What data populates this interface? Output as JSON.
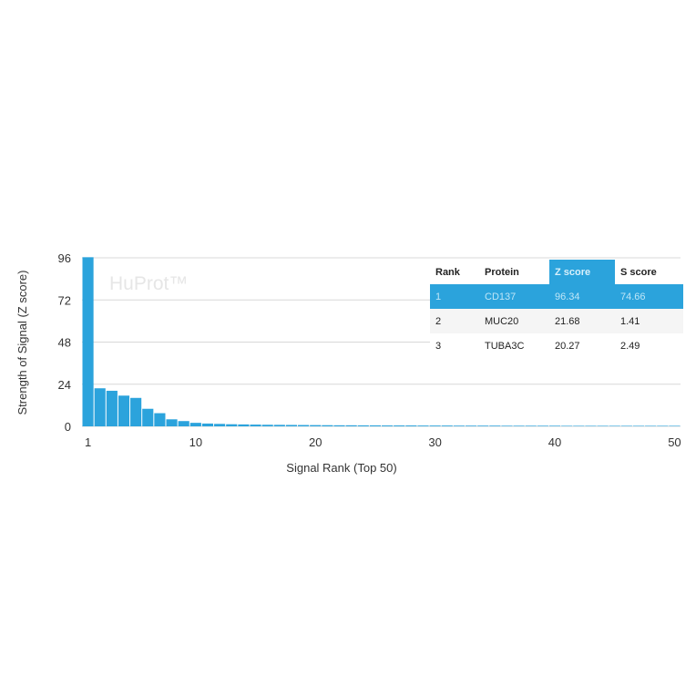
{
  "chart_data": {
    "type": "bar",
    "xlabel": "Signal Rank (Top 50)",
    "ylabel": "Strength of Signal (Z score)",
    "ylim": [
      0,
      96
    ],
    "yticks": [
      0,
      24,
      48,
      72,
      96
    ],
    "xticks": [
      1,
      10,
      20,
      30,
      40,
      50
    ],
    "grid": true,
    "watermark": "HuProt™",
    "bar_color": "#2ba3dc",
    "x": [
      1,
      2,
      3,
      4,
      5,
      6,
      7,
      8,
      9,
      10,
      11,
      12,
      13,
      14,
      15,
      16,
      17,
      18,
      19,
      20,
      21,
      22,
      23,
      24,
      25,
      26,
      27,
      28,
      29,
      30,
      31,
      32,
      33,
      34,
      35,
      36,
      37,
      38,
      39,
      40,
      41,
      42,
      43,
      44,
      45,
      46,
      47,
      48,
      49,
      50
    ],
    "values": [
      96.34,
      21.68,
      20.27,
      17.5,
      16.2,
      10,
      7.5,
      4,
      3,
      2,
      1.6,
      1.4,
      1.2,
      1.1,
      1,
      0.9,
      0.85,
      0.8,
      0.75,
      0.7,
      0.65,
      0.6,
      0.6,
      0.55,
      0.55,
      0.5,
      0.5,
      0.5,
      0.45,
      0.45,
      0.45,
      0.4,
      0.4,
      0.4,
      0.4,
      0.35,
      0.35,
      0.35,
      0.35,
      0.35,
      0.3,
      0.3,
      0.3,
      0.3,
      0.3,
      0.3,
      0.3,
      0.3,
      0.3,
      0.3
    ]
  },
  "table": {
    "headers": [
      "Rank",
      "Protein",
      "Z score",
      "S score"
    ],
    "rows": [
      [
        "1",
        "CD137",
        "96.34",
        "74.66"
      ],
      [
        "2",
        "MUC20",
        "21.68",
        "1.41"
      ],
      [
        "3",
        "TUBA3C",
        "20.27",
        "2.49"
      ]
    ]
  }
}
